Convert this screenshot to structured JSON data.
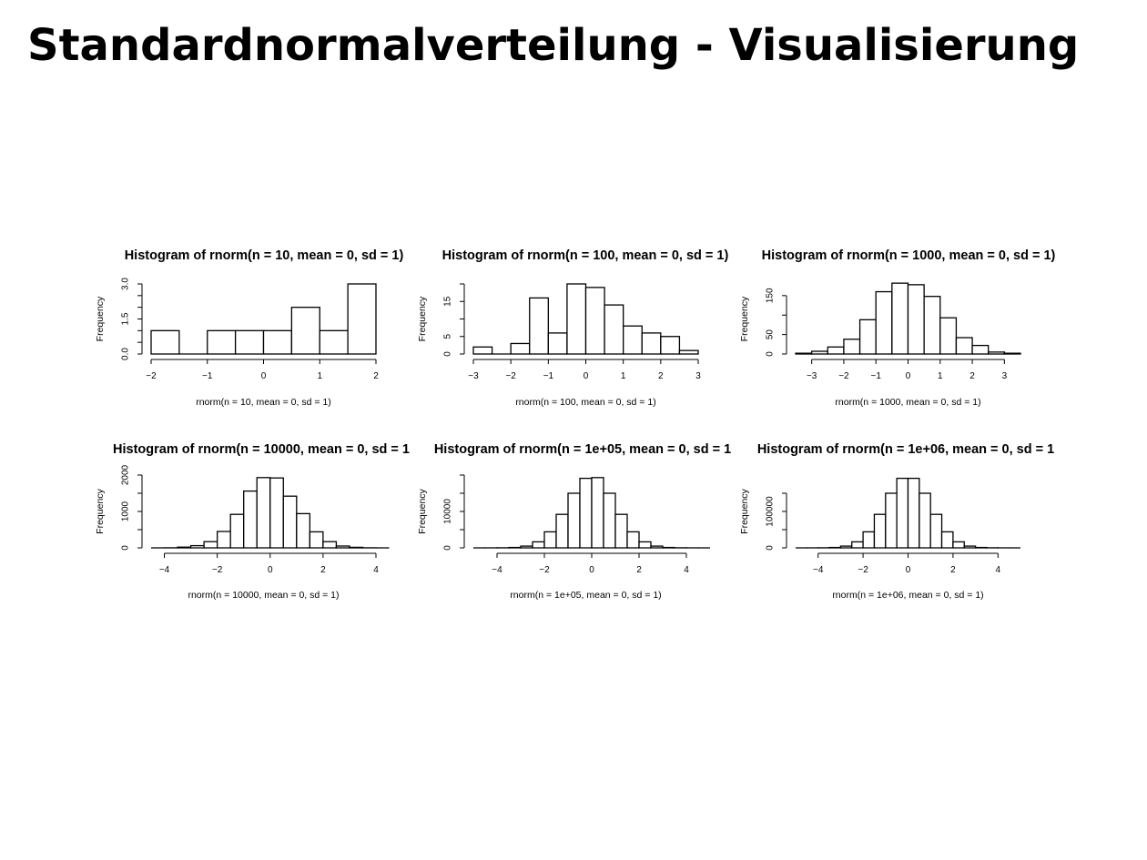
{
  "slide": {
    "title": "Standardnormalverteilung - Visualisierung"
  },
  "chart_data": [
    {
      "type": "bar",
      "title": "Histogram of rnorm(n = 10, mean = 0, sd = 1)",
      "xlabel": "rnorm(n = 10, mean = 0, sd = 1)",
      "ylabel": "Frequency",
      "bins": [
        [
          -2,
          -1.5
        ],
        [
          -1.5,
          -1
        ],
        [
          -1,
          -0.5
        ],
        [
          -0.5,
          0
        ],
        [
          0,
          0.5
        ],
        [
          0.5,
          1
        ],
        [
          1,
          1.5
        ],
        [
          1.5,
          2
        ]
      ],
      "values": [
        1,
        0,
        1,
        1,
        1,
        2,
        1,
        3
      ],
      "xlim": [
        -2,
        2
      ],
      "ylim": [
        0,
        3
      ],
      "x_ticks": [
        -2,
        -1,
        0,
        1,
        2
      ],
      "x_tick_labels": [
        "−2",
        "−1",
        "0",
        "1",
        "2"
      ],
      "y_ticks": [
        0,
        0.5,
        1,
        1.5,
        2,
        2.5,
        3
      ],
      "y_tick_labels": [
        "0.0",
        "",
        "",
        "1.5",
        "",
        "",
        "3.0"
      ]
    },
    {
      "type": "bar",
      "title": "Histogram of rnorm(n = 100, mean = 0, sd = 1)",
      "xlabel": "rnorm(n = 100, mean = 0, sd = 1)",
      "ylabel": "Frequency",
      "bins": [
        [
          -3,
          -2.5
        ],
        [
          -2.5,
          -2
        ],
        [
          -2,
          -1.5
        ],
        [
          -1.5,
          -1
        ],
        [
          -1,
          -0.5
        ],
        [
          -0.5,
          0
        ],
        [
          0,
          0.5
        ],
        [
          0.5,
          1
        ],
        [
          1,
          1.5
        ],
        [
          1.5,
          2
        ],
        [
          2,
          2.5
        ],
        [
          2.5,
          3
        ]
      ],
      "values": [
        2,
        0,
        3,
        16,
        6,
        20,
        19,
        14,
        8,
        6,
        5,
        1
      ],
      "xlim": [
        -3,
        3
      ],
      "ylim": [
        0,
        20
      ],
      "x_ticks": [
        -3,
        -2,
        -1,
        0,
        1,
        2,
        3
      ],
      "x_tick_labels": [
        "−3",
        "−2",
        "−1",
        "0",
        "1",
        "2",
        "3"
      ],
      "y_ticks": [
        0,
        5,
        10,
        15,
        20
      ],
      "y_tick_labels": [
        "0",
        "5",
        "",
        "15",
        ""
      ]
    },
    {
      "type": "bar",
      "title": "Histogram of rnorm(n = 1000, mean = 0, sd = 1)",
      "xlabel": "rnorm(n = 1000, mean = 0, sd = 1)",
      "ylabel": "Frequency",
      "bins": [
        [
          -3.5,
          -3
        ],
        [
          -3,
          -2.5
        ],
        [
          -2.5,
          -2
        ],
        [
          -2,
          -1.5
        ],
        [
          -1.5,
          -1
        ],
        [
          -1,
          -0.5
        ],
        [
          -0.5,
          0
        ],
        [
          0,
          0.5
        ],
        [
          0.5,
          1
        ],
        [
          1,
          1.5
        ],
        [
          1.5,
          2
        ],
        [
          2,
          2.5
        ],
        [
          2.5,
          3
        ],
        [
          3,
          3.5
        ]
      ],
      "values": [
        2,
        7,
        18,
        38,
        88,
        160,
        182,
        178,
        148,
        93,
        42,
        22,
        5,
        2
      ],
      "xlim": [
        -3.5,
        3.5
      ],
      "ylim": [
        0,
        180
      ],
      "x_ticks": [
        -3,
        -2,
        -1,
        0,
        1,
        2,
        3
      ],
      "x_tick_labels": [
        "−3",
        "−2",
        "−1",
        "0",
        "1",
        "2",
        "3"
      ],
      "y_ticks": [
        0,
        50,
        100,
        150
      ],
      "y_tick_labels": [
        "0",
        "50",
        "",
        "150"
      ]
    },
    {
      "type": "bar",
      "title": "Histogram of rnorm(n = 10000, mean = 0, sd = 1",
      "xlabel": "rnorm(n = 10000, mean = 0, sd = 1)",
      "ylabel": "Frequency",
      "bins": [
        [
          -4.5,
          -4
        ],
        [
          -4,
          -3.5
        ],
        [
          -3.5,
          -3
        ],
        [
          -3,
          -2.5
        ],
        [
          -2.5,
          -2
        ],
        [
          -2,
          -1.5
        ],
        [
          -1.5,
          -1
        ],
        [
          -1,
          -0.5
        ],
        [
          -0.5,
          0
        ],
        [
          0,
          0.5
        ],
        [
          0.5,
          1
        ],
        [
          1,
          1.5
        ],
        [
          1.5,
          2
        ],
        [
          2,
          2.5
        ],
        [
          2.5,
          3
        ],
        [
          3,
          3.5
        ],
        [
          3.5,
          4
        ],
        [
          4,
          4.5
        ]
      ],
      "values": [
        0,
        2,
        20,
        60,
        170,
        450,
        920,
        1560,
        1930,
        1920,
        1420,
        940,
        440,
        170,
        50,
        15,
        2,
        0
      ],
      "xlim": [
        -4.5,
        4
      ],
      "ylim": [
        0,
        2000
      ],
      "x_ticks": [
        -4,
        -2,
        0,
        2,
        4
      ],
      "x_tick_labels": [
        "−4",
        "−2",
        "0",
        "2",
        "4"
      ],
      "y_ticks": [
        0,
        500,
        1000,
        1500,
        2000
      ],
      "y_tick_labels": [
        "0",
        "",
        "1000",
        "",
        "2000"
      ]
    },
    {
      "type": "bar",
      "title": "Histogram of rnorm(n = 1e+05, mean = 0, sd = 1",
      "xlabel": "rnorm(n = 1e+05, mean = 0, sd = 1)",
      "ylabel": "Frequency",
      "bins": [
        [
          -5,
          -4.5
        ],
        [
          -4.5,
          -4
        ],
        [
          -4,
          -3.5
        ],
        [
          -3.5,
          -3
        ],
        [
          -3,
          -2.5
        ],
        [
          -2.5,
          -2
        ],
        [
          -2,
          -1.5
        ],
        [
          -1.5,
          -1
        ],
        [
          -1,
          -0.5
        ],
        [
          -0.5,
          0
        ],
        [
          0,
          0.5
        ],
        [
          0.5,
          1
        ],
        [
          1,
          1.5
        ],
        [
          1.5,
          2
        ],
        [
          2,
          2.5
        ],
        [
          2.5,
          3
        ],
        [
          3,
          3.5
        ],
        [
          3.5,
          4
        ],
        [
          4,
          4.5
        ],
        [
          4.5,
          5
        ]
      ],
      "values": [
        0,
        3,
        20,
        110,
        480,
        1650,
        4400,
        9200,
        15000,
        19100,
        19300,
        15000,
        9200,
        4400,
        1650,
        480,
        110,
        20,
        3,
        0
      ],
      "xlim": [
        -5,
        4.5
      ],
      "ylim": [
        0,
        20000
      ],
      "x_ticks": [
        -4,
        -2,
        0,
        2,
        4
      ],
      "x_tick_labels": [
        "−4",
        "−2",
        "0",
        "2",
        "4"
      ],
      "y_ticks": [
        0,
        5000,
        10000,
        15000,
        20000
      ],
      "y_tick_labels": [
        "0",
        "",
        "10000",
        "",
        ""
      ]
    },
    {
      "type": "bar",
      "title": "Histogram of rnorm(n = 1e+06, mean = 0, sd = 1",
      "xlabel": "rnorm(n = 1e+06, mean = 0, sd = 1)",
      "ylabel": "Frequency",
      "bins": [
        [
          -5,
          -4.5
        ],
        [
          -4.5,
          -4
        ],
        [
          -4,
          -3.5
        ],
        [
          -3.5,
          -3
        ],
        [
          -3,
          -2.5
        ],
        [
          -2.5,
          -2
        ],
        [
          -2,
          -1.5
        ],
        [
          -1.5,
          -1
        ],
        [
          -1,
          -0.5
        ],
        [
          -0.5,
          0
        ],
        [
          0,
          0.5
        ],
        [
          0.5,
          1
        ],
        [
          1,
          1.5
        ],
        [
          1.5,
          2
        ],
        [
          2,
          2.5
        ],
        [
          2.5,
          3
        ],
        [
          3,
          3.5
        ],
        [
          3.5,
          4
        ],
        [
          4,
          4.5
        ],
        [
          4.5,
          5
        ]
      ],
      "values": [
        0,
        30,
        200,
        1100,
        4800,
        16500,
        44000,
        92000,
        150000,
        191000,
        191000,
        150000,
        92000,
        44000,
        16500,
        4800,
        1100,
        200,
        30,
        0
      ],
      "xlim": [
        -5,
        5
      ],
      "ylim": [
        0,
        200000
      ],
      "x_ticks": [
        -4,
        -2,
        0,
        2,
        4
      ],
      "x_tick_labels": [
        "−4",
        "−2",
        "0",
        "2",
        "4"
      ],
      "y_ticks": [
        0,
        50000,
        100000,
        150000
      ],
      "y_tick_labels": [
        "0",
        "",
        "100000",
        ""
      ]
    }
  ]
}
